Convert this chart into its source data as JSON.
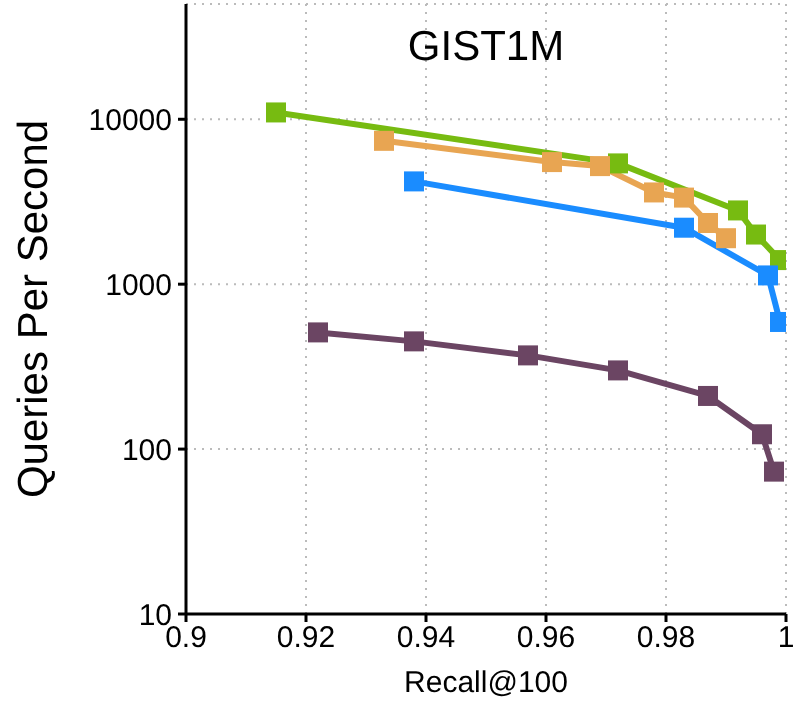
{
  "chart_data": {
    "type": "line",
    "title": "GIST1M",
    "xlabel": "Recall@100",
    "ylabel": "Queries Per Second",
    "xlim": [
      0.9,
      1
    ],
    "xticks": [
      0.9,
      0.92,
      0.94,
      0.96,
      0.98,
      1
    ],
    "ylim": [
      10,
      50000
    ],
    "yticks": [
      10,
      100,
      1000,
      10000
    ],
    "log": "y",
    "grid": true,
    "marker": "square",
    "line_style": "solid",
    "series": [
      {
        "color": "#77bb11",
        "x": [
          0.915,
          0.972,
          0.992,
          0.995,
          0.999
        ],
        "values": [
          11000,
          5400,
          2800,
          2000,
          1400
        ]
      },
      {
        "color": "#e8a552",
        "x": [
          0.933,
          0.961,
          0.969,
          0.978,
          0.983,
          0.987,
          0.99
        ],
        "values": [
          7400,
          5500,
          5200,
          3600,
          3350,
          2350,
          1900
        ]
      },
      {
        "color": "#1a8cff",
        "x": [
          0.938,
          0.983,
          0.997,
          0.999
        ],
        "values": [
          4200,
          2200,
          1130,
          590
        ]
      },
      {
        "color": "#6b4563",
        "x": [
          0.922,
          0.938,
          0.957,
          0.972,
          0.987,
          0.996,
          0.998
        ],
        "values": [
          510,
          450,
          370,
          300,
          210,
          123,
          73
        ]
      }
    ]
  }
}
